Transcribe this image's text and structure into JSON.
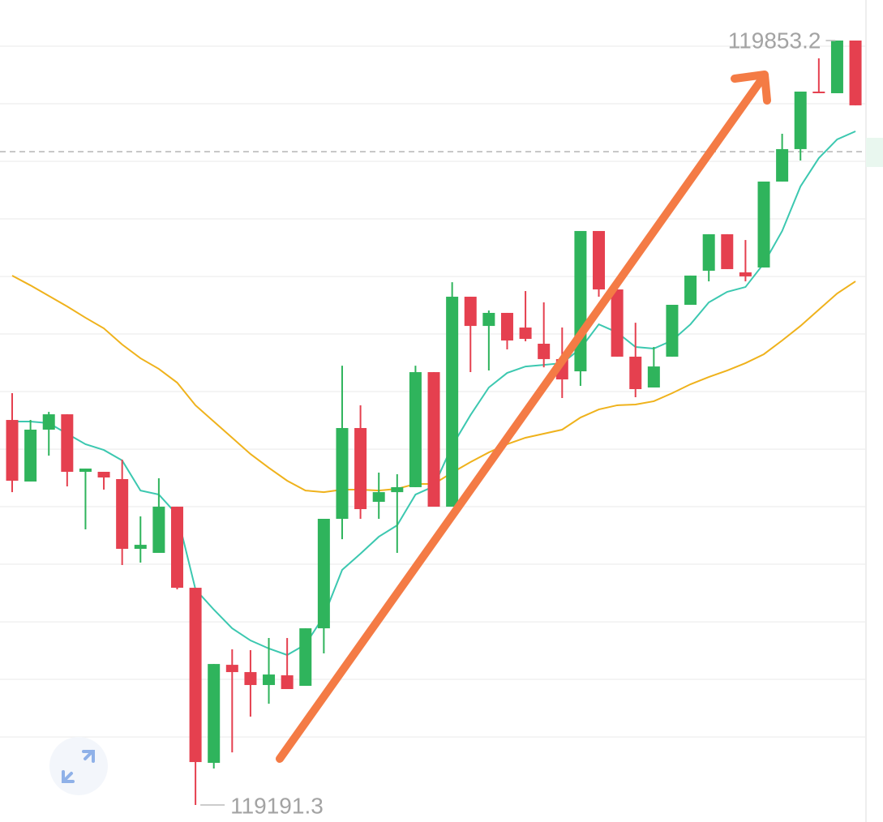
{
  "chart_data": {
    "type": "candlestick",
    "open": [
      119524.7,
      119471.4,
      119516.3,
      119529.6,
      119479.8,
      119479.8,
      119473.5,
      119413.1,
      119409.6,
      119449.6,
      119379.4,
      119227.8,
      119312.7,
      119306.4,
      119295.2,
      119303.6,
      119294.5,
      119344.3,
      119439.1,
      119517.7,
      119453.8,
      119462.2,
      119466.5,
      119566.1,
      119449.6,
      119631.4,
      119606.1,
      119617.4,
      119604.7,
      119590.7,
      119577.4,
      119566.8,
      119688.3,
      119637.7,
      119579.5,
      119552.8,
      119579.5,
      119624.4,
      119653.9,
      119685.5,
      119652.5,
      119656.7,
      119731.1,
      119759.2,
      119809.0,
      119807.6,
      119853.2
    ],
    "high": [
      119547.9,
      119524.7,
      119531.7,
      119529.6,
      119482.6,
      119479.8,
      119490.3,
      119441.2,
      119474.2,
      119449.6,
      119379.4,
      119313.4,
      119326.1,
      119325.4,
      119335.9,
      119335.9,
      119344.3,
      119439.1,
      119571.7,
      119537.4,
      119479.1,
      119477.7,
      119571.7,
      119566.1,
      119644.0,
      119631.4,
      119619.5,
      119617.4,
      119636.3,
      119626.5,
      119604.7,
      119688.3,
      119688.3,
      119637.7,
      119608.9,
      119587.9,
      119624.4,
      119649.7,
      119685.5,
      119685.5,
      119680.5,
      119731.1,
      119772.5,
      119809.0,
      119837.8,
      119853.2,
      119853.2
    ],
    "low": [
      119462.2,
      119471.4,
      119493.8,
      119467.2,
      119430.0,
      119464.4,
      119399.1,
      119401.2,
      119409.6,
      119378.0,
      119191.3,
      119222.9,
      119236.9,
      119267.8,
      119279.0,
      119291.7,
      119294.5,
      119322.6,
      119421.5,
      119439.1,
      119439.1,
      119409.6,
      119466.5,
      119449.6,
      119449.6,
      119566.1,
      119567.5,
      119585.8,
      119592.8,
      119570.3,
      119543.7,
      119554.2,
      119631.4,
      119579.5,
      119544.4,
      119552.8,
      119579.5,
      119624.4,
      119644.7,
      119655.3,
      119644.7,
      119656.7,
      119731.1,
      119749.3,
      119807.6,
      119807.6,
      119797.1
    ],
    "close": [
      119472.1,
      119516.3,
      119529.6,
      119479.8,
      119482.6,
      119474.9,
      119413.1,
      119416.6,
      119449.6,
      119379.4,
      119228.5,
      119313.4,
      119306.4,
      119295.2,
      119304.3,
      119291.7,
      119344.3,
      119439.1,
      119517.7,
      119447.5,
      119462.2,
      119466.5,
      119566.1,
      119449.6,
      119631.4,
      119606.1,
      119617.4,
      119593.5,
      119594.9,
      119577.4,
      119559.8,
      119688.3,
      119637.7,
      119579.5,
      119551.4,
      119571.0,
      119624.4,
      119649.7,
      119685.5,
      119655.3,
      119649.0,
      119731.1,
      119759.2,
      119809.0,
      119807.6,
      119853.2,
      119797.1
    ],
    "up_color": "#2fb45c",
    "down_color": "#e5404f",
    "series": [
      {
        "color": "#3cc8b0",
        "values": [
          119523.3,
          119523.3,
          119521.9,
          119512.8,
          119503.7,
          119498.7,
          119489.6,
          119463.6,
          119460.1,
          119442.6,
          119378.0,
          119360.5,
          119344.3,
          119333.8,
          119326.8,
          119321.2,
          119330.3,
          119354.8,
          119394.9,
          119408.9,
          119423.6,
          119433.5,
          119460.1,
          119467.2,
          119502.3,
          119528.9,
          119552.8,
          119565.4,
          119571.0,
          119572.4,
          119573.9,
          119586.5,
          119607.5,
          119600.5,
          119587.9,
          119586.5,
          119593.5,
          119607.5,
          119626.5,
          119635.6,
          119639.8,
          119660.2,
          119688.3,
          119726.9,
          119751.4,
          119767.6,
          119774.6
        ]
      },
      {
        "color": "#efb21c",
        "values": [
          119649.7,
          119641.2,
          119632.1,
          119623.0,
          119613.2,
          119604.0,
          119590.0,
          119578.1,
          119568.9,
          119557.0,
          119537.4,
          119523.3,
          119509.3,
          119495.2,
          119483.3,
          119472.1,
          119463.6,
          119462.2,
          119464.4,
          119464.4,
          119463.6,
          119465.1,
          119469.3,
          119469.3,
          119479.1,
          119488.2,
          119496.6,
          119503.7,
          119509.3,
          119512.8,
          119516.3,
          119526.8,
          119533.8,
          119537.4,
          119538.1,
          119540.9,
          119547.9,
          119555.6,
          119561.9,
          119567.5,
          119573.9,
          119581.6,
          119593.5,
          119606.1,
          119620.2,
          119634.2,
          119644.7
        ]
      }
    ],
    "ylim": [
      119176.6,
      119888.3
    ],
    "grid_lines": [
      119848.3,
      119798.5,
      119748.6,
      119698.8,
      119648.9,
      119599.1,
      119549.3,
      119499.4,
      119449.6,
      119399.8,
      119349.9,
      119300.1,
      119250.2
    ],
    "dashed_line": 119757.0,
    "high_label": 119853.2,
    "low_label": 119191.3
  }
}
